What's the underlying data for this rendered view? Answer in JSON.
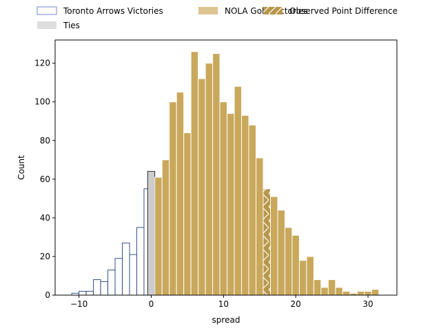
{
  "chart_data": {
    "type": "bar",
    "xlabel": "spread",
    "ylabel": "Count",
    "xlim": [
      -13.3,
      34
    ],
    "ylim": [
      0,
      132
    ],
    "x_ticks": [
      -10,
      0,
      10,
      20,
      30
    ],
    "y_ticks": [
      0,
      20,
      40,
      60,
      80,
      100,
      120
    ],
    "legend_placement": "top-center, above plot",
    "bin_width": 1,
    "series": [
      {
        "name": "Toronto Arrows Victories",
        "style": "outline",
        "color": "#1f3f7a",
        "bins": [
          {
            "left": -11,
            "count": 1
          },
          {
            "left": -10,
            "count": 2
          },
          {
            "left": -9,
            "count": 2
          },
          {
            "left": -8,
            "count": 8
          },
          {
            "left": -7,
            "count": 7
          },
          {
            "left": -6,
            "count": 13
          },
          {
            "left": -5,
            "count": 19
          },
          {
            "left": -4,
            "count": 27
          },
          {
            "left": -3,
            "count": 21
          },
          {
            "left": -2,
            "count": 35
          },
          {
            "left": -1,
            "count": 55
          }
        ]
      },
      {
        "name": "Ties",
        "style": "fill",
        "color": "#cccccc",
        "bins": [
          {
            "left": -0.5,
            "count": 64
          }
        ]
      },
      {
        "name": "NOLA Gold Victories",
        "style": "fill",
        "color": "#c9a85c",
        "bins": [
          {
            "left": 0.5,
            "count": 61
          },
          {
            "left": 1.5,
            "count": 70
          },
          {
            "left": 2.5,
            "count": 100
          },
          {
            "left": 3.5,
            "count": 105
          },
          {
            "left": 4.5,
            "count": 84
          },
          {
            "left": 5.5,
            "count": 126
          },
          {
            "left": 6.5,
            "count": 112
          },
          {
            "left": 7.5,
            "count": 120
          },
          {
            "left": 8.5,
            "count": 125
          },
          {
            "left": 9.5,
            "count": 100
          },
          {
            "left": 10.5,
            "count": 94
          },
          {
            "left": 11.5,
            "count": 108
          },
          {
            "left": 12.5,
            "count": 93
          },
          {
            "left": 13.5,
            "count": 88
          },
          {
            "left": 14.5,
            "count": 71
          },
          {
            "left": 15.5,
            "count": 55
          },
          {
            "left": 16.5,
            "count": 51
          },
          {
            "left": 17.5,
            "count": 44
          },
          {
            "left": 18.5,
            "count": 35
          },
          {
            "left": 19.5,
            "count": 31
          },
          {
            "left": 20.5,
            "count": 18
          },
          {
            "left": 21.5,
            "count": 20
          },
          {
            "left": 22.5,
            "count": 8
          },
          {
            "left": 23.5,
            "count": 4
          },
          {
            "left": 24.5,
            "count": 8
          },
          {
            "left": 25.5,
            "count": 4
          },
          {
            "left": 26.5,
            "count": 2
          },
          {
            "left": 27.5,
            "count": 1
          },
          {
            "left": 28.5,
            "count": 2
          },
          {
            "left": 29.5,
            "count": 2
          },
          {
            "left": 30.5,
            "count": 3
          }
        ]
      },
      {
        "name": "Observed Point Difference",
        "style": "hatched",
        "color": "#b8964a",
        "bins": [
          {
            "left": 15.5,
            "count": 55
          }
        ]
      }
    ]
  }
}
